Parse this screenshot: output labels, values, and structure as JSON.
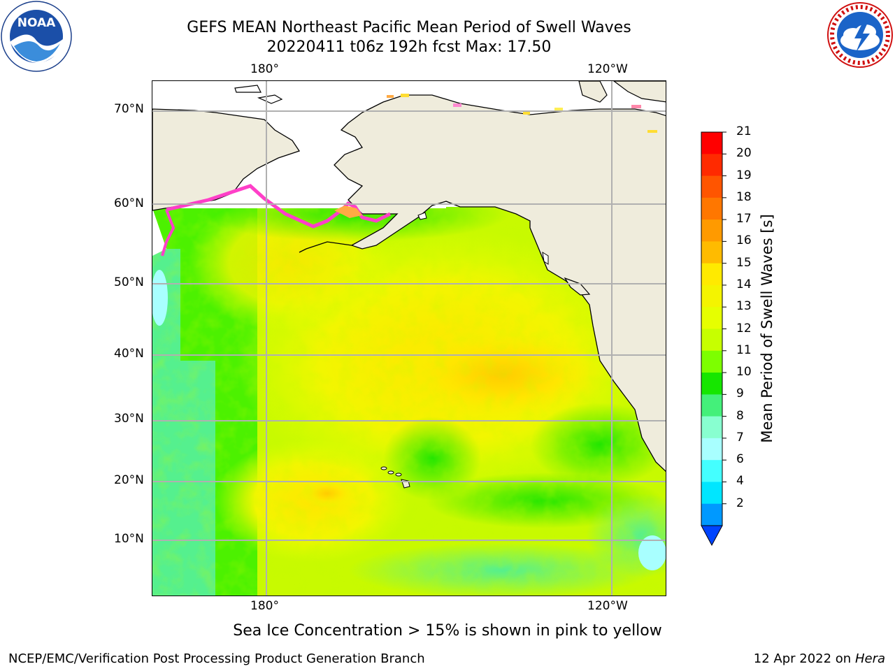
{
  "title": {
    "line1": "GEFS MEAN Northeast Pacific Mean Period of Swell Waves",
    "line2": "20220411 t06z 192h fcst   Max: 17.50"
  },
  "logos": {
    "left": {
      "icon": "noaa-logo",
      "text": "NOAA"
    },
    "right": {
      "icon": "nws-logo",
      "ring_text": "NATIONAL WEATHER SERVICE"
    }
  },
  "map": {
    "lon_ticks_top": [
      "180°",
      "120°W"
    ],
    "lon_ticks_bottom": [
      "180°",
      "120°W"
    ],
    "lat_ticks": [
      "70°N",
      "60°N",
      "50°N",
      "40°N",
      "30°N",
      "20°N",
      "10°N"
    ],
    "land_color": "#efecdc",
    "grid_color": "#b0b0b0"
  },
  "colorbar": {
    "label": "Mean Period of Swell Waves [s]",
    "ticks": [
      "21",
      "20",
      "19",
      "18",
      "17",
      "16",
      "15",
      "14",
      "13",
      "12",
      "11",
      "10",
      "9",
      "8",
      "7",
      "6",
      "4",
      "2"
    ],
    "colors": [
      "#ff0000",
      "#ff2a00",
      "#ff5500",
      "#ff7700",
      "#ff9a00",
      "#ffbb00",
      "#ffea00",
      "#f4f400",
      "#e6ff00",
      "#c7ff00",
      "#7dff00",
      "#16e600",
      "#44f07a",
      "#88ffd0",
      "#a8ffff",
      "#44ffff",
      "#00e6ff",
      "#0099ff",
      "#0044ff"
    ]
  },
  "caption": "Sea Ice Concentration > 15% is shown in pink to yellow",
  "footer": {
    "left": "NCEP/EMC/Verification Post Processing Product Generation Branch",
    "right_date": "12 Apr 2022 on ",
    "right_host": "Hera"
  }
}
